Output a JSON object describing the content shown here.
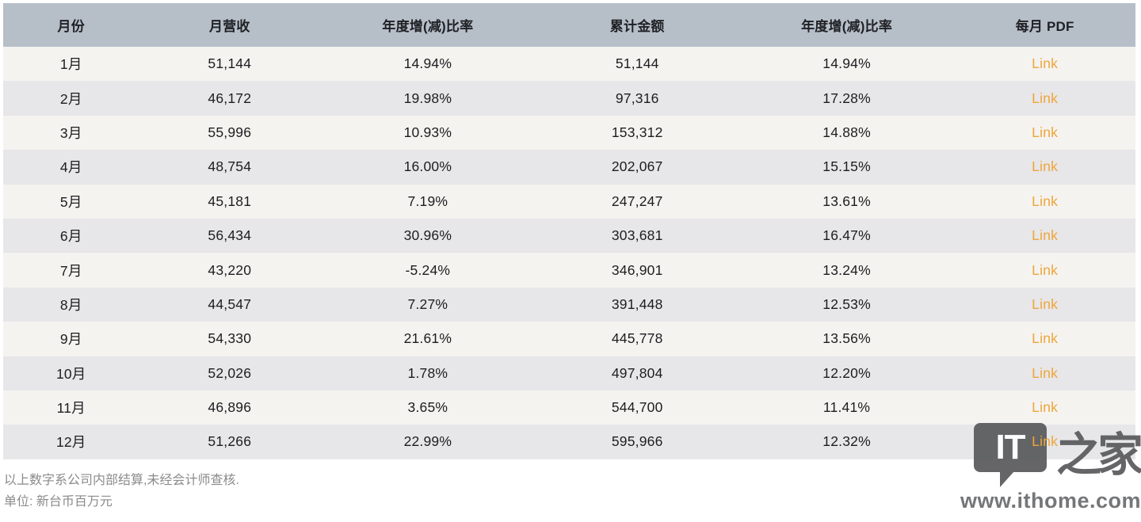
{
  "table": {
    "columns": [
      {
        "key": "month",
        "label": "月份"
      },
      {
        "key": "revenue",
        "label": "月营收"
      },
      {
        "key": "yoy",
        "label": "年度增(减)比率"
      },
      {
        "key": "cumulative",
        "label": "累计金额"
      },
      {
        "key": "cum_yoy",
        "label": "年度增(减)比率"
      },
      {
        "key": "pdf",
        "label": "每月 PDF"
      }
    ],
    "rows": [
      {
        "month": "1月",
        "revenue": "51,144",
        "yoy": "14.94%",
        "cumulative": "51,144",
        "cum_yoy": "14.94%",
        "pdf": "Link"
      },
      {
        "month": "2月",
        "revenue": "46,172",
        "yoy": "19.98%",
        "cumulative": "97,316",
        "cum_yoy": "17.28%",
        "pdf": "Link"
      },
      {
        "month": "3月",
        "revenue": "55,996",
        "yoy": "10.93%",
        "cumulative": "153,312",
        "cum_yoy": "14.88%",
        "pdf": "Link"
      },
      {
        "month": "4月",
        "revenue": "48,754",
        "yoy": "16.00%",
        "cumulative": "202,067",
        "cum_yoy": "15.15%",
        "pdf": "Link"
      },
      {
        "month": "5月",
        "revenue": "45,181",
        "yoy": "7.19%",
        "cumulative": "247,247",
        "cum_yoy": "13.61%",
        "pdf": "Link"
      },
      {
        "month": "6月",
        "revenue": "56,434",
        "yoy": "30.96%",
        "cumulative": "303,681",
        "cum_yoy": "16.47%",
        "pdf": "Link"
      },
      {
        "month": "7月",
        "revenue": "43,220",
        "yoy": "-5.24%",
        "cumulative": "346,901",
        "cum_yoy": "13.24%",
        "pdf": "Link"
      },
      {
        "month": "8月",
        "revenue": "44,547",
        "yoy": "7.27%",
        "cumulative": "391,448",
        "cum_yoy": "12.53%",
        "pdf": "Link"
      },
      {
        "month": "9月",
        "revenue": "54,330",
        "yoy": "21.61%",
        "cumulative": "445,778",
        "cum_yoy": "13.56%",
        "pdf": "Link"
      },
      {
        "month": "10月",
        "revenue": "52,026",
        "yoy": "1.78%",
        "cumulative": "497,804",
        "cum_yoy": "12.20%",
        "pdf": "Link"
      },
      {
        "month": "11月",
        "revenue": "46,896",
        "yoy": "3.65%",
        "cumulative": "544,700",
        "cum_yoy": "11.41%",
        "pdf": "Link"
      },
      {
        "month": "12月",
        "revenue": "51,266",
        "yoy": "22.99%",
        "cumulative": "595,966",
        "cum_yoy": "12.32%",
        "pdf": "Link"
      }
    ]
  },
  "footnotes": {
    "line1": "以上数字系公司内部结算,未经会计师查核.",
    "line2": "单位: 新台币百万元"
  },
  "watermark": {
    "logo_text": "IT",
    "logo_suffix": "之家",
    "url": "www.ithome.com"
  },
  "colors": {
    "header_bg": "#b6bec8",
    "row_light": "#f4f3f0",
    "row_dark": "#e7e6e8",
    "link": "#efa63a",
    "text": "#1d1d1f",
    "footnote": "#8b8b8b",
    "watermark": "#58595b"
  }
}
